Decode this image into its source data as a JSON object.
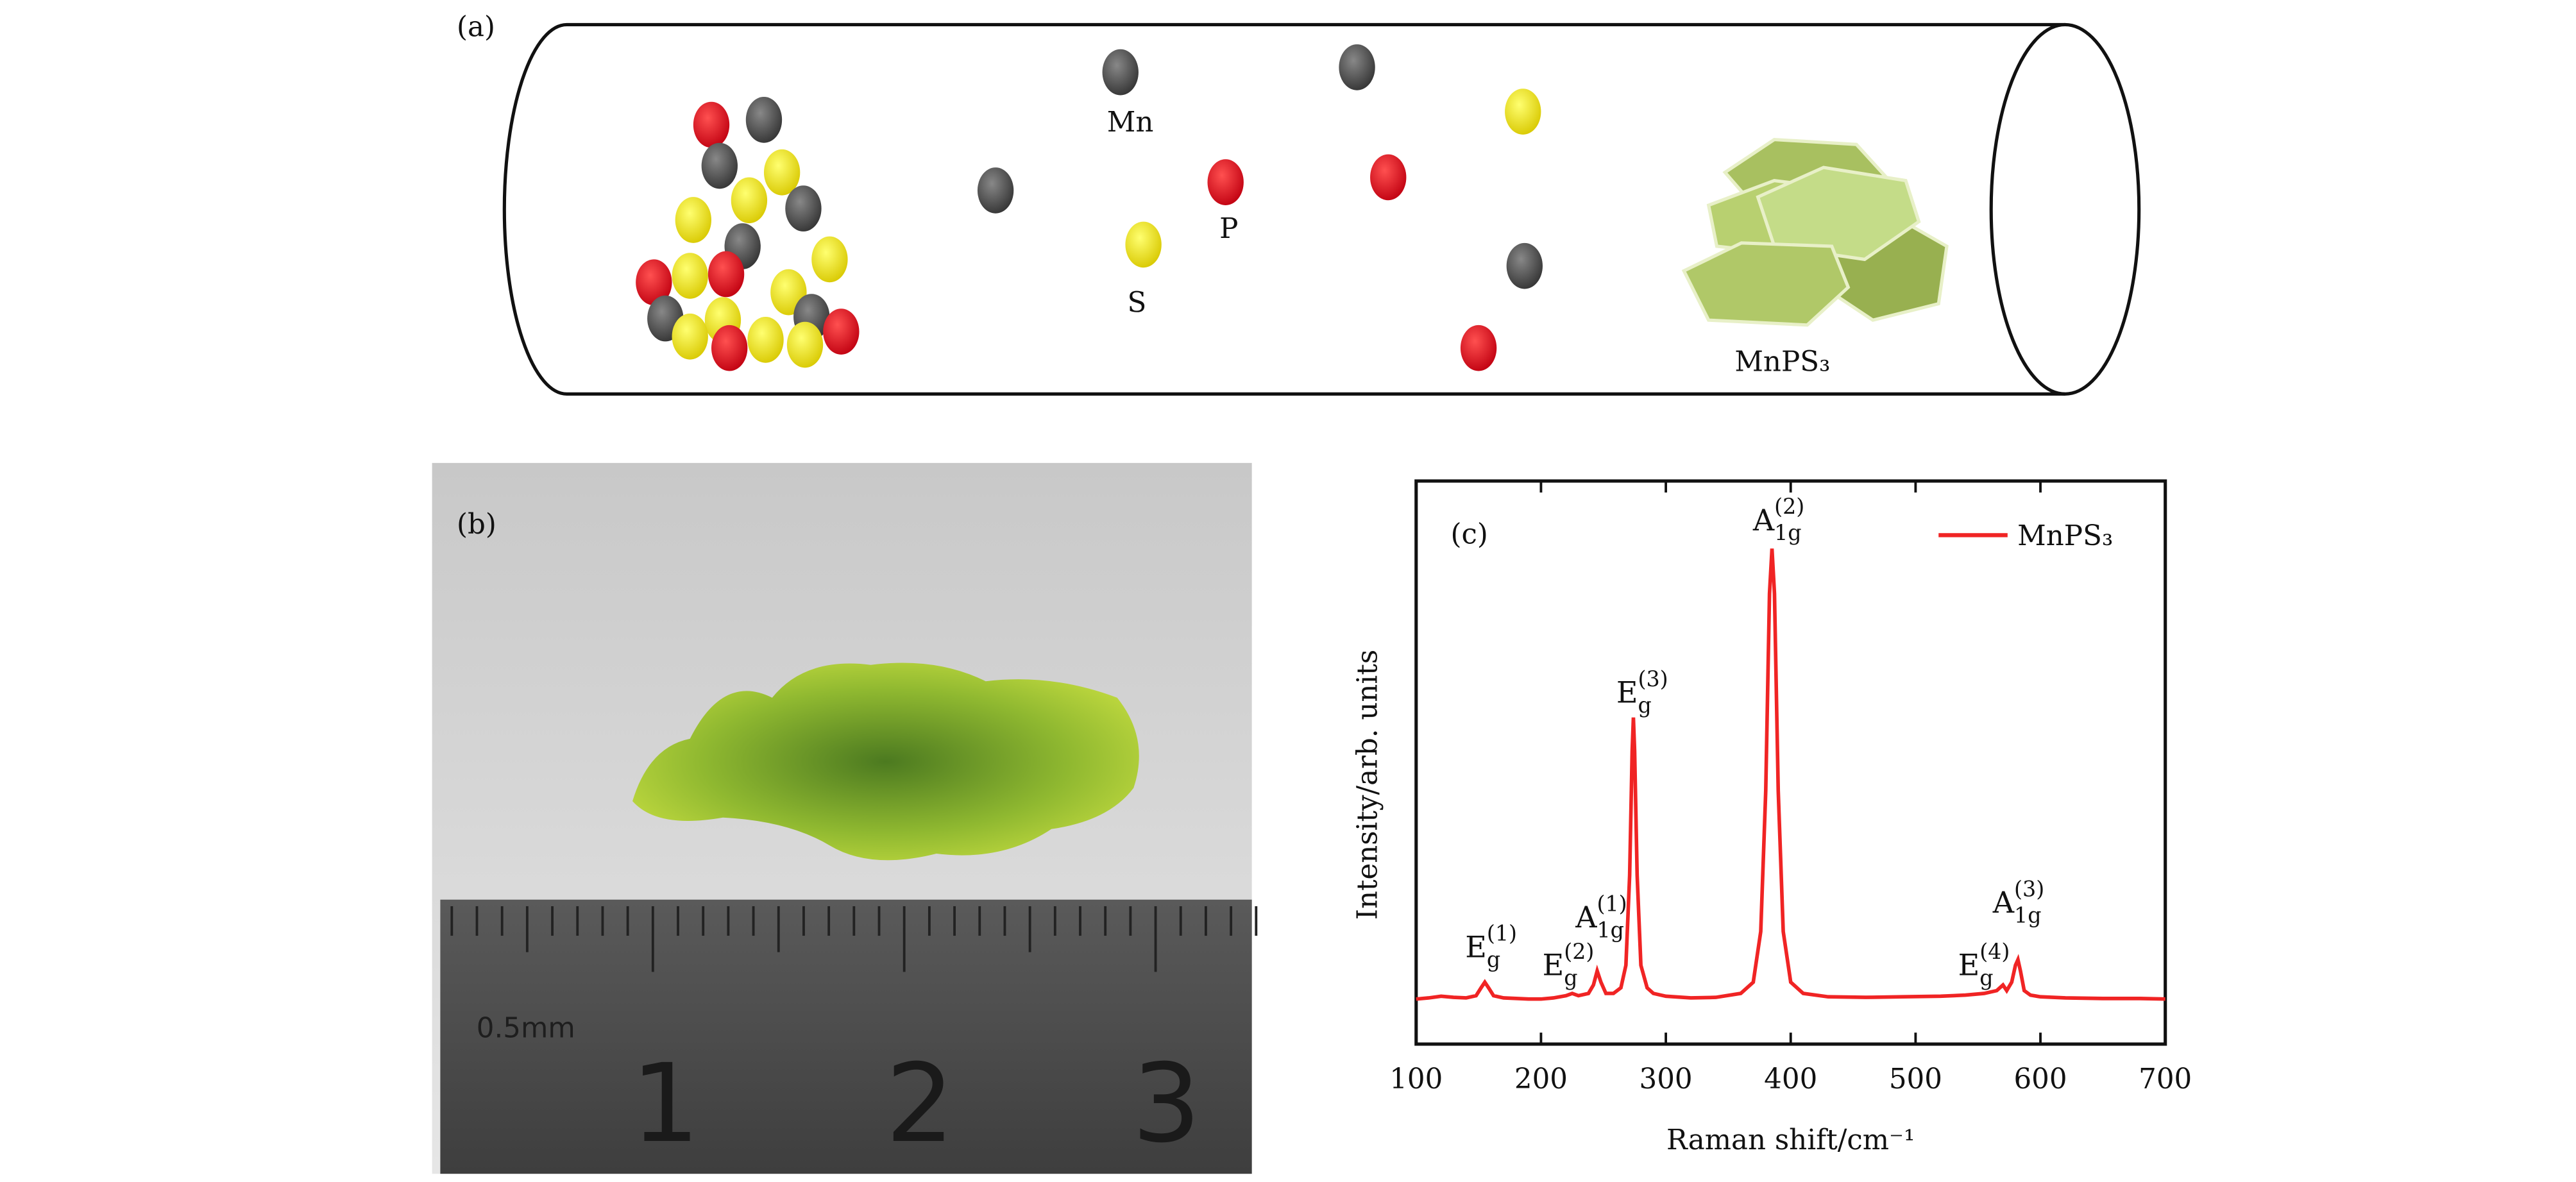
{
  "figure": {
    "panel_a": {
      "label": "(a)",
      "atoms": [
        "Mn",
        "P",
        "S"
      ],
      "product": "MnPS₃"
    },
    "panel_b": {
      "label": "(b)",
      "ruler_unit": "0.5mm",
      "ruler_numbers": [
        "1",
        "2",
        "3"
      ]
    }
  },
  "chart_data": {
    "type": "line",
    "panel_label": "(c)",
    "x_label": "Raman shift/cm⁻¹",
    "y_label": "Intensity/arb. units",
    "x": [
      100,
      110,
      120,
      130,
      140,
      148,
      152,
      155,
      158,
      162,
      170,
      180,
      190,
      200,
      210,
      220,
      225,
      230,
      238,
      242,
      245,
      248,
      252,
      258,
      264,
      268,
      271,
      273,
      274,
      275,
      277,
      280,
      285,
      290,
      300,
      320,
      340,
      360,
      370,
      376,
      380,
      383,
      385,
      387,
      390,
      394,
      400,
      410,
      430,
      460,
      490,
      520,
      540,
      555,
      565,
      570,
      573,
      577,
      580,
      582,
      584,
      587,
      592,
      600,
      620,
      650,
      680,
      700
    ],
    "series": [
      {
        "name": "MnPS₃",
        "color": "#f02424",
        "values": [
          8,
          8.2,
          8.5,
          8.3,
          8.2,
          8.6,
          10,
          11,
          10,
          8.6,
          8.2,
          8.1,
          8,
          8,
          8.2,
          8.6,
          9,
          8.6,
          9,
          10.5,
          13,
          11,
          9,
          9,
          10,
          14,
          30,
          52,
          58,
          52,
          30,
          14,
          10,
          9,
          8.5,
          8.2,
          8.3,
          9,
          11,
          20,
          45,
          80,
          88,
          80,
          45,
          20,
          11,
          9,
          8.4,
          8.3,
          8.4,
          8.5,
          8.7,
          9,
          9.5,
          10.5,
          9.5,
          11,
          14,
          15,
          13,
          9.5,
          8.7,
          8.4,
          8.2,
          8.1,
          8.1,
          8
        ]
      }
    ],
    "xlim": [
      100,
      700
    ],
    "xticks": [
      100,
      200,
      300,
      400,
      500,
      600,
      700
    ],
    "ylim": [
      0,
      100
    ],
    "legend": "upper right",
    "annotations": [
      {
        "base": "E",
        "sub": "g",
        "sup": "(1)"
      },
      {
        "base": "E",
        "sub": "g",
        "sup": "(2)"
      },
      {
        "base": "A",
        "sub": "1g",
        "sup": "(1)"
      },
      {
        "base": "E",
        "sub": "g",
        "sup": "(3)"
      },
      {
        "base": "A",
        "sub": "1g",
        "sup": "(2)"
      },
      {
        "base": "E",
        "sub": "g",
        "sup": "(4)"
      },
      {
        "base": "A",
        "sub": "1g",
        "sup": "(3)"
      }
    ]
  }
}
